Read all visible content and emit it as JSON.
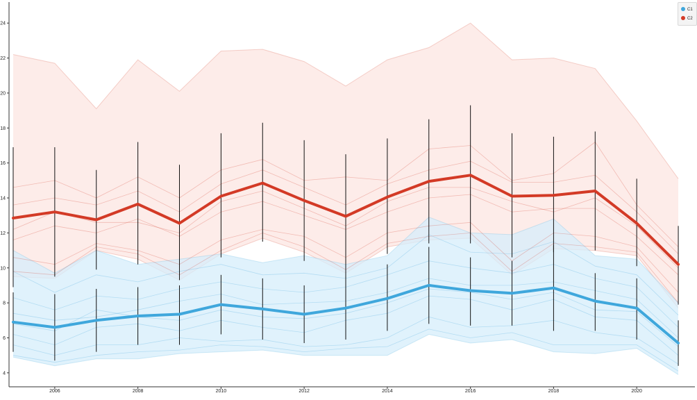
{
  "chart_data": {
    "type": "line",
    "x": [
      2005,
      2006,
      2007,
      2008,
      2009,
      2010,
      2011,
      2012,
      2013,
      2014,
      2015,
      2016,
      2017,
      2018,
      2019,
      2020,
      2021
    ],
    "xticks": [
      2006,
      2008,
      2010,
      2012,
      2014,
      2016,
      2018,
      2020
    ],
    "yticks": [
      4,
      6,
      8,
      10,
      12,
      14,
      16,
      18,
      20,
      22,
      24
    ],
    "xlim": [
      2004.9,
      2021.4
    ],
    "ylim": [
      3.2,
      25.2
    ],
    "legend_position": "top-right",
    "grid": false,
    "series": [
      {
        "name": "C1",
        "color": "#3fa7dc",
        "band_color": "#d6eefb",
        "mean": [
          6.9,
          6.6,
          7.0,
          7.25,
          7.35,
          7.9,
          7.65,
          7.35,
          7.7,
          8.25,
          9.0,
          8.7,
          8.55,
          8.85,
          8.1,
          7.7,
          5.7
        ],
        "err_low": [
          5.2,
          4.7,
          5.2,
          5.6,
          5.6,
          6.2,
          5.9,
          5.7,
          5.9,
          6.4,
          6.8,
          6.7,
          6.7,
          6.4,
          6.4,
          5.9,
          4.4
        ],
        "err_high": [
          8.6,
          8.5,
          8.8,
          8.9,
          9.0,
          9.6,
          9.4,
          9.0,
          9.5,
          10.2,
          11.2,
          10.6,
          10.4,
          11.3,
          9.7,
          9.4,
          7.0
        ],
        "band_low": [
          4.9,
          4.4,
          4.8,
          4.8,
          5.1,
          5.2,
          5.3,
          5.0,
          5.0,
          5.0,
          6.2,
          5.7,
          5.9,
          5.2,
          5.1,
          5.4,
          3.9
        ],
        "band_high": [
          11.0,
          9.7,
          11.0,
          10.2,
          10.5,
          10.8,
          10.3,
          10.7,
          10.2,
          10.7,
          12.9,
          12.0,
          11.9,
          12.8,
          10.7,
          10.5,
          8.0
        ],
        "members": [
          [
            5.6,
            5.0,
            5.6,
            5.6,
            6.0,
            5.8,
            5.9,
            5.5,
            5.6,
            6.0,
            7.2,
            6.6,
            6.7,
            7.0,
            6.3,
            6.0,
            4.5
          ],
          [
            6.2,
            5.6,
            6.6,
            6.8,
            6.4,
            7.0,
            6.6,
            6.3,
            7.0,
            7.4,
            8.4,
            8.2,
            7.6,
            8.2,
            7.2,
            7.0,
            5.0
          ],
          [
            7.4,
            7.0,
            7.2,
            7.6,
            8.1,
            8.5,
            7.9,
            8.0,
            8.1,
            8.6,
            9.4,
            9.0,
            9.0,
            9.2,
            8.7,
            8.2,
            6.0
          ],
          [
            8.3,
            7.6,
            8.4,
            8.2,
            8.8,
            9.2,
            8.8,
            8.6,
            8.9,
            9.6,
            10.4,
            10.0,
            9.7,
            10.2,
            9.4,
            8.9,
            6.6
          ],
          [
            9.8,
            8.6,
            9.6,
            9.2,
            9.8,
            10.2,
            9.6,
            9.7,
            9.4,
            10.0,
            11.9,
            10.9,
            10.8,
            11.5,
            10.1,
            9.6,
            7.3
          ],
          [
            5.0,
            4.6,
            5.0,
            5.2,
            5.3,
            5.6,
            5.5,
            5.2,
            5.4,
            5.5,
            6.5,
            6.0,
            6.3,
            5.6,
            5.6,
            5.6,
            4.1
          ],
          [
            6.8,
            6.4,
            7.6,
            7.2,
            7.0,
            7.6,
            7.2,
            7.1,
            7.4,
            8.0,
            8.8,
            8.6,
            8.2,
            8.6,
            7.6,
            7.5,
            5.5
          ]
        ]
      },
      {
        "name": "C2",
        "color": "#d33a26",
        "band_color": "#fce6e1",
        "mean": [
          12.85,
          13.2,
          12.75,
          13.65,
          12.55,
          14.1,
          14.85,
          13.85,
          12.95,
          14.05,
          14.95,
          15.3,
          14.1,
          14.15,
          14.4,
          12.55,
          10.2
        ],
        "err_low": [
          8.9,
          9.5,
          9.9,
          10.2,
          9.3,
          10.6,
          11.5,
          10.4,
          9.4,
          10.8,
          11.4,
          11.4,
          10.6,
          10.9,
          11.0,
          10.1,
          7.9
        ],
        "err_high": [
          16.9,
          16.9,
          15.6,
          17.2,
          15.9,
          17.7,
          18.3,
          17.3,
          16.5,
          17.4,
          18.5,
          19.3,
          17.7,
          17.5,
          17.8,
          15.1,
          12.4
        ],
        "band_low": [
          9.5,
          9.4,
          11.0,
          10.5,
          9.3,
          10.8,
          11.7,
          10.9,
          9.7,
          11.2,
          11.6,
          11.7,
          9.6,
          11.1,
          11.0,
          10.7,
          7.7
        ],
        "band_high": [
          22.2,
          21.7,
          19.1,
          21.9,
          20.1,
          22.4,
          22.5,
          21.8,
          20.4,
          21.9,
          22.6,
          24.0,
          21.9,
          22.0,
          21.4,
          18.4,
          15.1
        ],
        "members": [
          [
            11.6,
            12.4,
            12.0,
            12.8,
            11.8,
            13.2,
            13.8,
            13.0,
            12.2,
            13.2,
            14.0,
            14.2,
            13.2,
            13.4,
            13.4,
            11.8,
            9.6
          ],
          [
            13.6,
            14.0,
            13.6,
            14.4,
            13.2,
            14.8,
            15.6,
            14.6,
            13.6,
            14.8,
            15.6,
            16.1,
            14.9,
            14.9,
            15.3,
            13.2,
            10.8
          ],
          [
            10.6,
            10.2,
            11.4,
            11.0,
            10.2,
            11.6,
            12.2,
            11.8,
            10.6,
            12.0,
            12.4,
            12.6,
            10.4,
            12.0,
            11.8,
            11.2,
            8.6
          ],
          [
            14.6,
            15.0,
            14.0,
            15.2,
            14.0,
            15.6,
            16.2,
            15.0,
            15.2,
            15.0,
            16.8,
            17.0,
            15.0,
            15.4,
            17.2,
            13.6,
            11.2
          ],
          [
            12.2,
            13.2,
            12.6,
            12.6,
            12.0,
            13.8,
            14.4,
            13.4,
            12.4,
            13.8,
            14.6,
            14.6,
            13.8,
            13.2,
            14.0,
            12.4,
            10.0
          ],
          [
            9.8,
            9.6,
            11.2,
            10.8,
            9.6,
            11.0,
            12.0,
            11.2,
            9.9,
            11.4,
            11.8,
            12.0,
            9.8,
            11.4,
            11.2,
            10.9,
            8.0
          ]
        ]
      }
    ]
  }
}
